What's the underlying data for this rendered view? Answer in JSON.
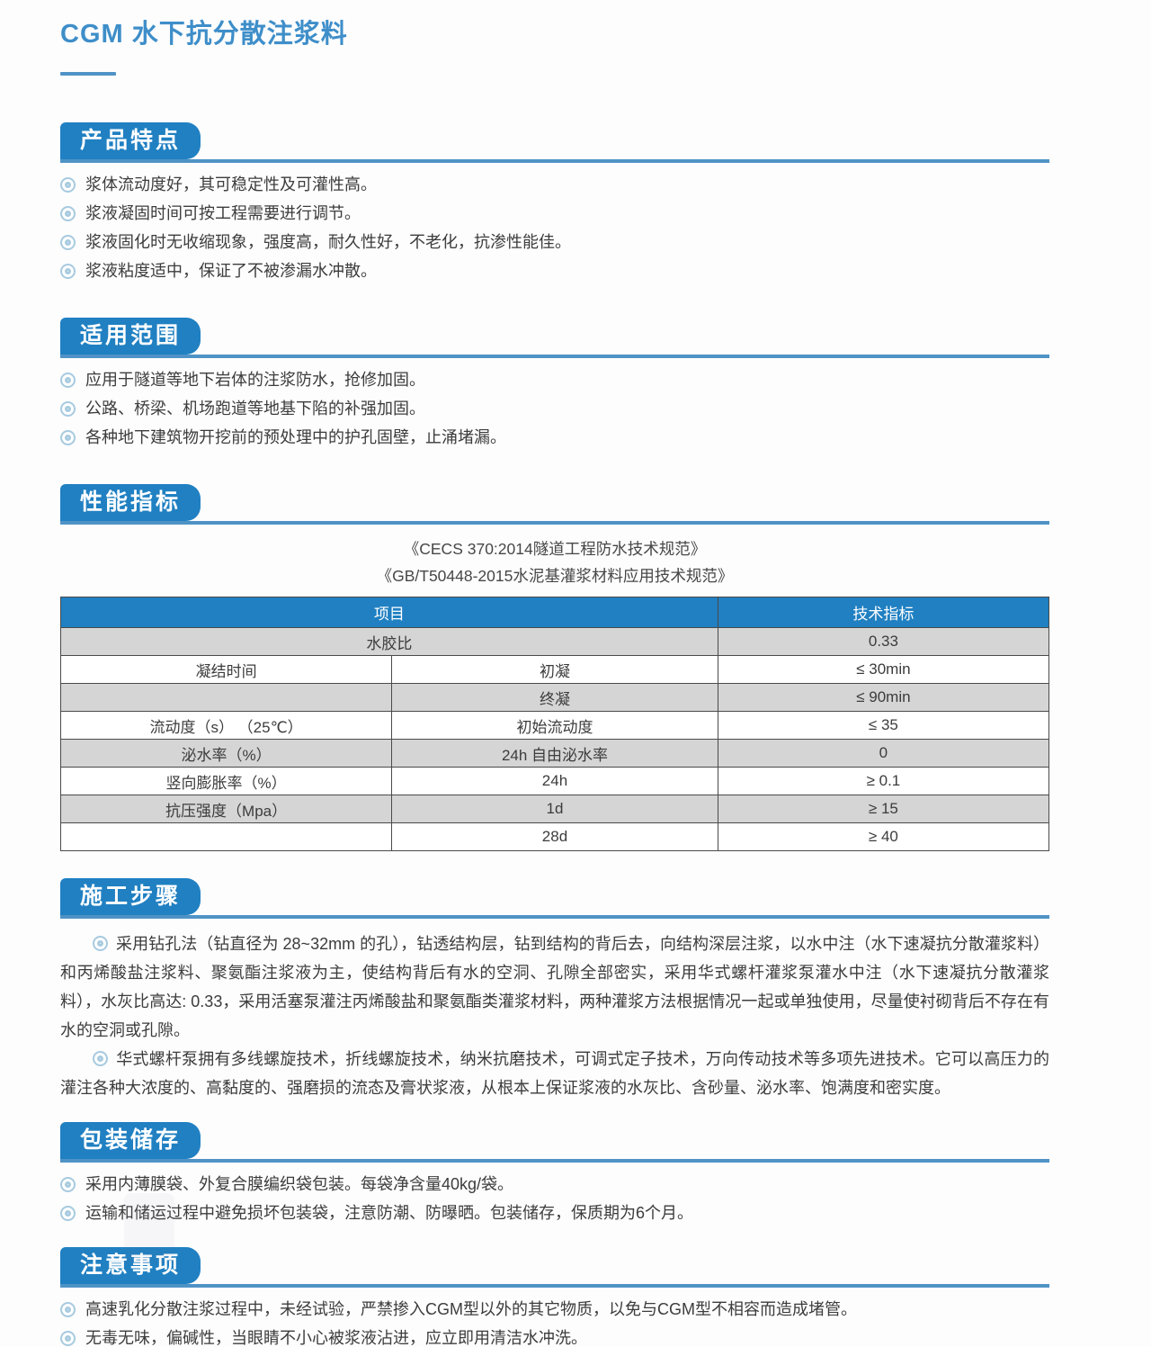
{
  "page": {
    "title": "CGM 水下抗分散注浆料",
    "accent_color": "#2080c2",
    "rule_color": "#4f93c6",
    "table_header_color": "#2080c2",
    "table_alt_row_color": "#d5d5d6",
    "bullet_icon": "double-circle-ring"
  },
  "sections": {
    "features": {
      "label": "产品特点",
      "bullets": [
        "浆体流动度好，其可稳定性及可灌性高。",
        "浆液凝固时间可按工程需要进行调节。",
        "浆液固化时无收缩现象，强度高，耐久性好，不老化，抗渗性能佳。",
        "浆液粘度适中，保证了不被渗漏水冲散。"
      ]
    },
    "scope": {
      "label": "适用范围",
      "bullets": [
        "应用于隧道等地下岩体的注浆防水，抢修加固。",
        "公路、桥梁、机场跑道等地基下陷的补强加固。",
        "各种地下建筑物开挖前的预处理中的护孔固壁，止涌堵漏。"
      ]
    },
    "performance": {
      "label": "性能指标",
      "standards": [
        "《CECS 370:2014隧道工程防水技术规范》",
        "《GB/T50448-2015水泥基灌浆材料应用技术规范》"
      ],
      "table": {
        "headers": {
          "item": "项目",
          "indicator": "技术指标"
        },
        "rows": [
          {
            "c1": "水胶比",
            "c2": "",
            "c3": "0.33"
          },
          {
            "c1": "凝结时间",
            "c2": "初凝",
            "c3": "≤ 30min"
          },
          {
            "c1": "",
            "c2": "终凝",
            "c3": "≤ 90min"
          },
          {
            "c1": "流动度（s） （25℃）",
            "c2": "初始流动度",
            "c3": "≤ 35"
          },
          {
            "c1": "泌水率（%）",
            "c2": "24h 自由泌水率",
            "c3": "0"
          },
          {
            "c1": "竖向膨胀率（%）",
            "c2": "24h",
            "c3": "≥ 0.1"
          },
          {
            "c1": "抗压强度（Mpa）",
            "c2": "1d",
            "c3": "≥ 15"
          },
          {
            "c1": "",
            "c2": "28d",
            "c3": "≥ 40"
          }
        ]
      }
    },
    "steps": {
      "label": "施工步骤",
      "paragraphs": [
        "采用钻孔法（钻直径为 28~32mm 的孔），钻透结构层，钻到结构的背后去，向结构深层注浆，以水中注（水下速凝抗分散灌浆料）和丙烯酸盐注浆料、聚氨酯注浆液为主，使结构背后有水的空洞、孔隙全部密实，采用华式螺杆灌浆泵灌水中注（水下速凝抗分散灌浆料），水灰比高达: 0.33，采用活塞泵灌注丙烯酸盐和聚氨酯类灌浆材料，两种灌浆方法根据情况一起或单独使用，尽量使衬砌背后不存在有水的空洞或孔隙。",
        "华式螺杆泵拥有多线螺旋技术，折线螺旋技术，纳米抗磨技术，可调式定子技术，万向传动技术等多项先进技术。它可以高压力的灌注各种大浓度的、高黏度的、强磨损的流态及膏状浆液，从根本上保证浆液的水灰比、含砂量、泌水率、饱满度和密实度。"
      ]
    },
    "packaging": {
      "label": "包装储存",
      "bullets": [
        "采用内薄膜袋、外复合膜编织袋包装。每袋净含量40kg/袋。",
        "运输和储运过程中避免损坏包装袋，注意防潮、防曝晒。包装储存，保质期为6个月。"
      ]
    },
    "notes": {
      "label": "注意事项",
      "bullets": [
        "高速乳化分散注浆过程中，未经试验，严禁掺入CGM型以外的其它物质，以免与CGM型不相容而造成堵管。",
        "无毒无味，偏碱性，当眼睛不小心被浆液沾进，应立即用清洁水冲洗。"
      ]
    }
  }
}
